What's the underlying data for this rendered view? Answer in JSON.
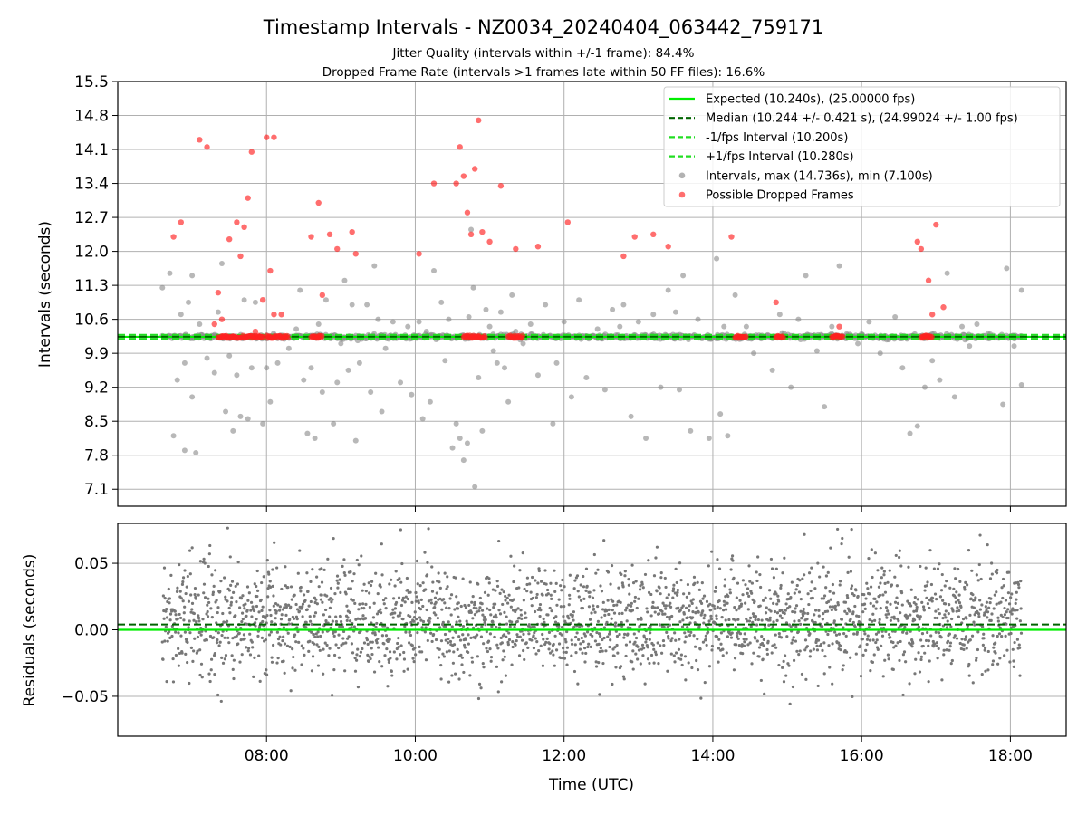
{
  "title": "Timestamp Intervals - NZ0034_20240404_063442_759171",
  "subtitle_lines": [
    "Jitter Quality (intervals within +/-1 frame): 84.4%",
    "Dropped Frame Rate (intervals >1 frames late within 50 FF files): 16.6%"
  ],
  "chart_data": [
    {
      "type": "scatter",
      "ylabel": "Intervals (seconds)",
      "xlim_hours": [
        6.0,
        18.75
      ],
      "ylim": [
        6.75,
        15.5
      ],
      "yticks": [
        "7.1",
        "7.8",
        "8.5",
        "9.2",
        "9.9",
        "10.6",
        "11.3",
        "12.0",
        "12.7",
        "13.4",
        "14.1",
        "14.8",
        "15.5"
      ],
      "xticks": [
        "08:00",
        "10:00",
        "12:00",
        "14:00",
        "16:00",
        "18:00"
      ],
      "grid": true,
      "legend_position": "top-right",
      "colors": {
        "expected": "#00ee00",
        "median": "#006400",
        "fps_band": "#22dd22",
        "intervals": "#888888",
        "dropped": "#ff2020"
      },
      "reference_lines": {
        "expected": 10.24,
        "median": 10.244,
        "minus_1_fps": 10.2,
        "plus_1_fps": 10.28
      },
      "legend": [
        "Expected (10.240s), (25.00000 fps)",
        "Median (10.244 +/- 0.421 s), (24.99024 +/- 1.00 fps)",
        "-1/fps Interval (10.200s)",
        "+1/fps Interval (10.280s)",
        "Intervals, max (14.736s), min (7.100s)",
        "Possible Dropped Frames"
      ],
      "series_intervals_offband": [
        [
          6.6,
          11.25
        ],
        [
          6.7,
          11.55
        ],
        [
          6.75,
          8.2
        ],
        [
          6.8,
          9.35
        ],
        [
          6.85,
          10.7
        ],
        [
          6.9,
          7.9
        ],
        [
          6.95,
          10.95
        ],
        [
          7.0,
          11.5
        ],
        [
          7.05,
          7.85
        ],
        [
          7.0,
          9.0
        ],
        [
          6.9,
          9.7
        ],
        [
          7.1,
          10.5
        ],
        [
          7.2,
          9.8
        ],
        [
          7.3,
          9.5
        ],
        [
          7.35,
          10.75
        ],
        [
          7.4,
          11.75
        ],
        [
          7.45,
          8.7
        ],
        [
          7.5,
          9.85
        ],
        [
          7.55,
          8.3
        ],
        [
          7.6,
          9.45
        ],
        [
          7.65,
          8.6
        ],
        [
          7.7,
          11.0
        ],
        [
          7.75,
          8.55
        ],
        [
          7.8,
          9.6
        ],
        [
          7.85,
          10.95
        ],
        [
          7.95,
          8.45
        ],
        [
          8.0,
          9.6
        ],
        [
          8.05,
          8.9
        ],
        [
          8.15,
          9.7
        ],
        [
          8.3,
          10.0
        ],
        [
          8.4,
          10.4
        ],
        [
          8.45,
          11.2
        ],
        [
          8.5,
          9.35
        ],
        [
          8.55,
          8.25
        ],
        [
          8.6,
          9.6
        ],
        [
          8.65,
          8.15
        ],
        [
          8.7,
          10.5
        ],
        [
          8.75,
          9.1
        ],
        [
          8.8,
          11.0
        ],
        [
          8.85,
          10.25
        ],
        [
          8.9,
          8.45
        ],
        [
          8.95,
          9.3
        ],
        [
          9.0,
          10.1
        ],
        [
          9.05,
          11.4
        ],
        [
          9.1,
          9.55
        ],
        [
          9.15,
          10.9
        ],
        [
          9.2,
          8.1
        ],
        [
          9.25,
          9.7
        ],
        [
          9.35,
          10.9
        ],
        [
          9.4,
          9.1
        ],
        [
          9.45,
          11.7
        ],
        [
          9.5,
          10.6
        ],
        [
          9.55,
          8.7
        ],
        [
          9.6,
          10.0
        ],
        [
          9.7,
          10.55
        ],
        [
          9.8,
          9.3
        ],
        [
          9.9,
          10.45
        ],
        [
          9.95,
          9.05
        ],
        [
          10.05,
          10.55
        ],
        [
          10.1,
          8.55
        ],
        [
          10.15,
          10.35
        ],
        [
          10.2,
          8.9
        ],
        [
          10.25,
          11.6
        ],
        [
          10.35,
          10.95
        ],
        [
          10.4,
          9.75
        ],
        [
          10.45,
          10.6
        ],
        [
          10.5,
          7.95
        ],
        [
          10.55,
          8.45
        ],
        [
          10.6,
          8.15
        ],
        [
          10.65,
          7.7
        ],
        [
          10.7,
          8.05
        ],
        [
          10.72,
          10.65
        ],
        [
          10.75,
          12.45
        ],
        [
          10.78,
          11.25
        ],
        [
          10.8,
          7.15
        ],
        [
          10.85,
          9.4
        ],
        [
          10.9,
          8.3
        ],
        [
          10.95,
          10.8
        ],
        [
          11.0,
          10.45
        ],
        [
          11.05,
          9.95
        ],
        [
          11.1,
          9.7
        ],
        [
          11.15,
          10.75
        ],
        [
          11.2,
          9.6
        ],
        [
          11.25,
          8.9
        ],
        [
          11.3,
          11.1
        ],
        [
          11.35,
          10.35
        ],
        [
          11.45,
          10.1
        ],
        [
          11.55,
          10.5
        ],
        [
          11.65,
          9.45
        ],
        [
          11.75,
          10.9
        ],
        [
          11.85,
          8.45
        ],
        [
          11.9,
          9.7
        ],
        [
          12.0,
          10.55
        ],
        [
          12.1,
          9.0
        ],
        [
          12.2,
          11.0
        ],
        [
          12.3,
          9.4
        ],
        [
          12.45,
          10.4
        ],
        [
          12.55,
          9.15
        ],
        [
          12.65,
          10.8
        ],
        [
          12.75,
          10.45
        ],
        [
          12.8,
          10.9
        ],
        [
          12.9,
          8.6
        ],
        [
          13.0,
          10.55
        ],
        [
          13.1,
          8.15
        ],
        [
          13.2,
          10.7
        ],
        [
          13.3,
          9.2
        ],
        [
          13.4,
          11.2
        ],
        [
          13.5,
          10.75
        ],
        [
          13.55,
          9.15
        ],
        [
          13.6,
          11.5
        ],
        [
          13.7,
          8.3
        ],
        [
          13.8,
          10.6
        ],
        [
          13.95,
          8.15
        ],
        [
          14.05,
          11.85
        ],
        [
          14.1,
          8.65
        ],
        [
          14.15,
          10.45
        ],
        [
          14.2,
          8.2
        ],
        [
          14.3,
          11.1
        ],
        [
          14.45,
          10.45
        ],
        [
          14.55,
          9.9
        ],
        [
          14.65,
          10.2
        ],
        [
          14.8,
          9.55
        ],
        [
          14.9,
          10.7
        ],
        [
          15.05,
          9.2
        ],
        [
          15.15,
          10.6
        ],
        [
          15.25,
          11.5
        ],
        [
          15.4,
          9.95
        ],
        [
          15.5,
          8.8
        ],
        [
          15.6,
          10.45
        ],
        [
          15.7,
          11.7
        ],
        [
          15.8,
          10.3
        ],
        [
          15.95,
          10.1
        ],
        [
          16.1,
          10.55
        ],
        [
          16.25,
          9.9
        ],
        [
          16.45,
          10.65
        ],
        [
          16.55,
          9.6
        ],
        [
          16.65,
          8.25
        ],
        [
          16.75,
          8.4
        ],
        [
          16.85,
          9.2
        ],
        [
          16.95,
          9.75
        ],
        [
          17.05,
          9.35
        ],
        [
          17.15,
          11.55
        ],
        [
          17.25,
          9.0
        ],
        [
          17.35,
          10.45
        ],
        [
          17.45,
          10.05
        ],
        [
          17.55,
          10.5
        ],
        [
          17.7,
          10.3
        ],
        [
          17.9,
          8.85
        ],
        [
          17.95,
          11.65
        ],
        [
          18.05,
          10.05
        ],
        [
          18.15,
          9.25
        ],
        [
          18.15,
          11.2
        ]
      ],
      "series_dropped": [
        [
          6.75,
          12.3
        ],
        [
          6.85,
          12.6
        ],
        [
          7.1,
          14.3
        ],
        [
          7.2,
          14.15
        ],
        [
          7.3,
          10.5
        ],
        [
          7.35,
          11.15
        ],
        [
          7.4,
          10.6
        ],
        [
          7.5,
          12.25
        ],
        [
          7.6,
          12.6
        ],
        [
          7.65,
          11.9
        ],
        [
          7.7,
          12.5
        ],
        [
          7.75,
          13.1
        ],
        [
          7.8,
          14.05
        ],
        [
          7.85,
          10.35
        ],
        [
          7.95,
          11.0
        ],
        [
          8.0,
          14.35
        ],
        [
          8.1,
          14.35
        ],
        [
          8.05,
          11.6
        ],
        [
          8.1,
          10.7
        ],
        [
          8.2,
          10.7
        ],
        [
          8.6,
          12.3
        ],
        [
          8.7,
          13.0
        ],
        [
          8.75,
          11.1
        ],
        [
          8.85,
          12.35
        ],
        [
          8.95,
          12.05
        ],
        [
          9.15,
          12.4
        ],
        [
          9.2,
          11.95
        ],
        [
          10.05,
          11.95
        ],
        [
          10.25,
          13.4
        ],
        [
          10.55,
          13.4
        ],
        [
          10.6,
          14.15
        ],
        [
          10.65,
          13.55
        ],
        [
          10.7,
          12.8
        ],
        [
          10.75,
          12.35
        ],
        [
          10.8,
          13.7
        ],
        [
          10.85,
          14.7
        ],
        [
          10.9,
          12.4
        ],
        [
          11.0,
          12.2
        ],
        [
          11.15,
          13.35
        ],
        [
          11.35,
          12.05
        ],
        [
          11.65,
          12.1
        ],
        [
          12.05,
          12.6
        ],
        [
          12.8,
          11.9
        ],
        [
          12.95,
          12.3
        ],
        [
          13.2,
          12.35
        ],
        [
          13.4,
          12.1
        ],
        [
          14.25,
          12.3
        ],
        [
          14.85,
          10.95
        ],
        [
          15.7,
          10.45
        ],
        [
          16.75,
          12.2
        ],
        [
          16.8,
          12.05
        ],
        [
          16.9,
          11.4
        ],
        [
          17.0,
          12.55
        ],
        [
          17.1,
          10.85
        ],
        [
          16.95,
          10.7
        ]
      ],
      "dropped_band_clusters": [
        [
          7.35,
          7.95
        ],
        [
          8.0,
          8.3
        ],
        [
          8.6,
          8.75
        ],
        [
          10.65,
          10.95
        ],
        [
          11.25,
          11.45
        ],
        [
          14.3,
          14.45
        ],
        [
          14.85,
          14.95
        ],
        [
          15.6,
          15.75
        ],
        [
          16.8,
          16.95
        ]
      ]
    },
    {
      "type": "scatter",
      "xlabel": "Time (UTC)",
      "ylabel": "Residuals (seconds)",
      "ylim": [
        -0.08,
        0.08
      ],
      "yticks": [
        "−0.05",
        "0.00",
        "0.05"
      ],
      "xticks": [
        "08:00",
        "10:00",
        "12:00",
        "14:00",
        "16:00",
        "18:00"
      ],
      "grid": true,
      "reference_lines": {
        "expected": 0.0,
        "median": 0.004
      },
      "residual_cloud": {
        "x_range_hours": [
          6.6,
          18.15
        ],
        "typical_range": [
          -0.035,
          0.05
        ],
        "extremes": [
          -0.062,
          0.078
        ]
      }
    }
  ]
}
